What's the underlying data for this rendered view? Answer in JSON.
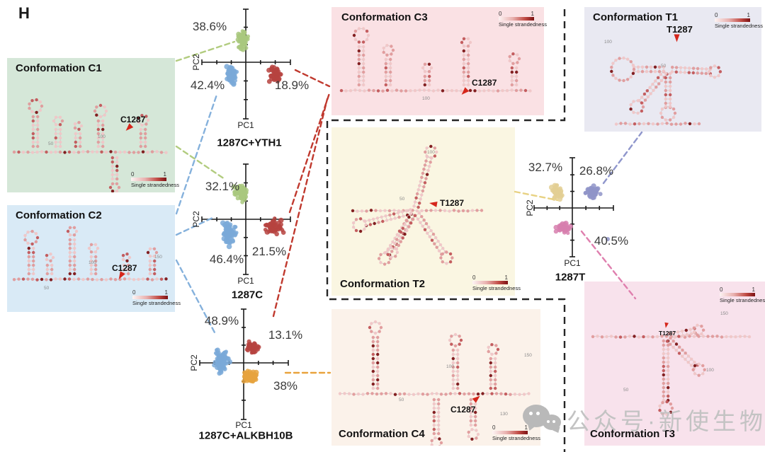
{
  "panel_label": "H",
  "colorbar": {
    "min": "0",
    "max": "1",
    "label": "Single strandedness"
  },
  "watermark": {
    "text": "公众号·新使生物"
  },
  "conformations": [
    {
      "id": "C1",
      "title": "Conformation C1",
      "marker": "C1287",
      "bg": "#d5e7d8",
      "position_labels": [
        "50",
        "100"
      ]
    },
    {
      "id": "C2",
      "title": "Conformation C2",
      "marker": "C1287",
      "bg": "#d9eaf6",
      "position_labels": [
        "50",
        "100",
        "150"
      ]
    },
    {
      "id": "C3",
      "title": "Conformation C3",
      "marker": "C1287",
      "bg": "#fae1e4",
      "position_labels": [
        "100",
        "150"
      ]
    },
    {
      "id": "T1",
      "title": "Conformation T1",
      "marker": "T1287",
      "bg": "#e9e9f2",
      "position_labels": [
        "100",
        "50"
      ]
    },
    {
      "id": "T2",
      "title": "Conformation T2",
      "marker": "T1287",
      "bg": "#faf6e2",
      "position_labels": [
        "100",
        "50"
      ]
    },
    {
      "id": "C4",
      "title": "Conformation C4",
      "marker": "C1287",
      "bg": "#fbf2ea",
      "position_labels": [
        "50",
        "100",
        "130",
        "150"
      ]
    },
    {
      "id": "T3",
      "title": "Conformation T3",
      "marker": "T1287",
      "bg": "#f8e2ec",
      "position_labels": [
        "150",
        "100",
        "50"
      ]
    }
  ],
  "plots": [
    {
      "type": "scatter",
      "title": "1287C+YTH1",
      "xlabel": "PC1",
      "ylabel": "PC2",
      "clusters": [
        {
          "name": "green",
          "pct": "38.6%",
          "color": "#a9c87e"
        },
        {
          "name": "blue",
          "pct": "42.4%",
          "color": "#7aa9d8"
        },
        {
          "name": "red",
          "pct": "18.9%",
          "color": "#b64340"
        }
      ]
    },
    {
      "type": "scatter",
      "title": "1287C",
      "xlabel": "PC1",
      "ylabel": "PC2",
      "clusters": [
        {
          "name": "green",
          "pct": "32.1%",
          "color": "#a9c87e"
        },
        {
          "name": "blue",
          "pct": "46.4%",
          "color": "#7aa9d8"
        },
        {
          "name": "red",
          "pct": "21.5%",
          "color": "#b64340"
        }
      ]
    },
    {
      "type": "scatter",
      "title": "1287C+ALKBH10B",
      "xlabel": "PC1",
      "ylabel": "PC2",
      "clusters": [
        {
          "name": "blue",
          "pct": "48.9%",
          "color": "#7aa9d8"
        },
        {
          "name": "red",
          "pct": "13.1%",
          "color": "#b64340"
        },
        {
          "name": "orange",
          "pct": "38%",
          "color": "#e6a33e"
        }
      ]
    },
    {
      "type": "scatter",
      "title": "1287T",
      "xlabel": "PC1",
      "ylabel": "PC2",
      "clusters": [
        {
          "name": "yellow",
          "pct": "32.7%",
          "color": "#e3cf94"
        },
        {
          "name": "purple",
          "pct": "26.8%",
          "color": "#8f94c8"
        },
        {
          "name": "pink",
          "pct": "40.5%",
          "color": "#d77fae"
        }
      ]
    }
  ],
  "connector_colors": {
    "green": "#b2cc7f",
    "blue": "#85b1dc",
    "red": "#c0392e",
    "orange": "#e9a33c",
    "yellow": "#e8d283",
    "purple": "#8f96cc",
    "pink": "#df7fae"
  }
}
